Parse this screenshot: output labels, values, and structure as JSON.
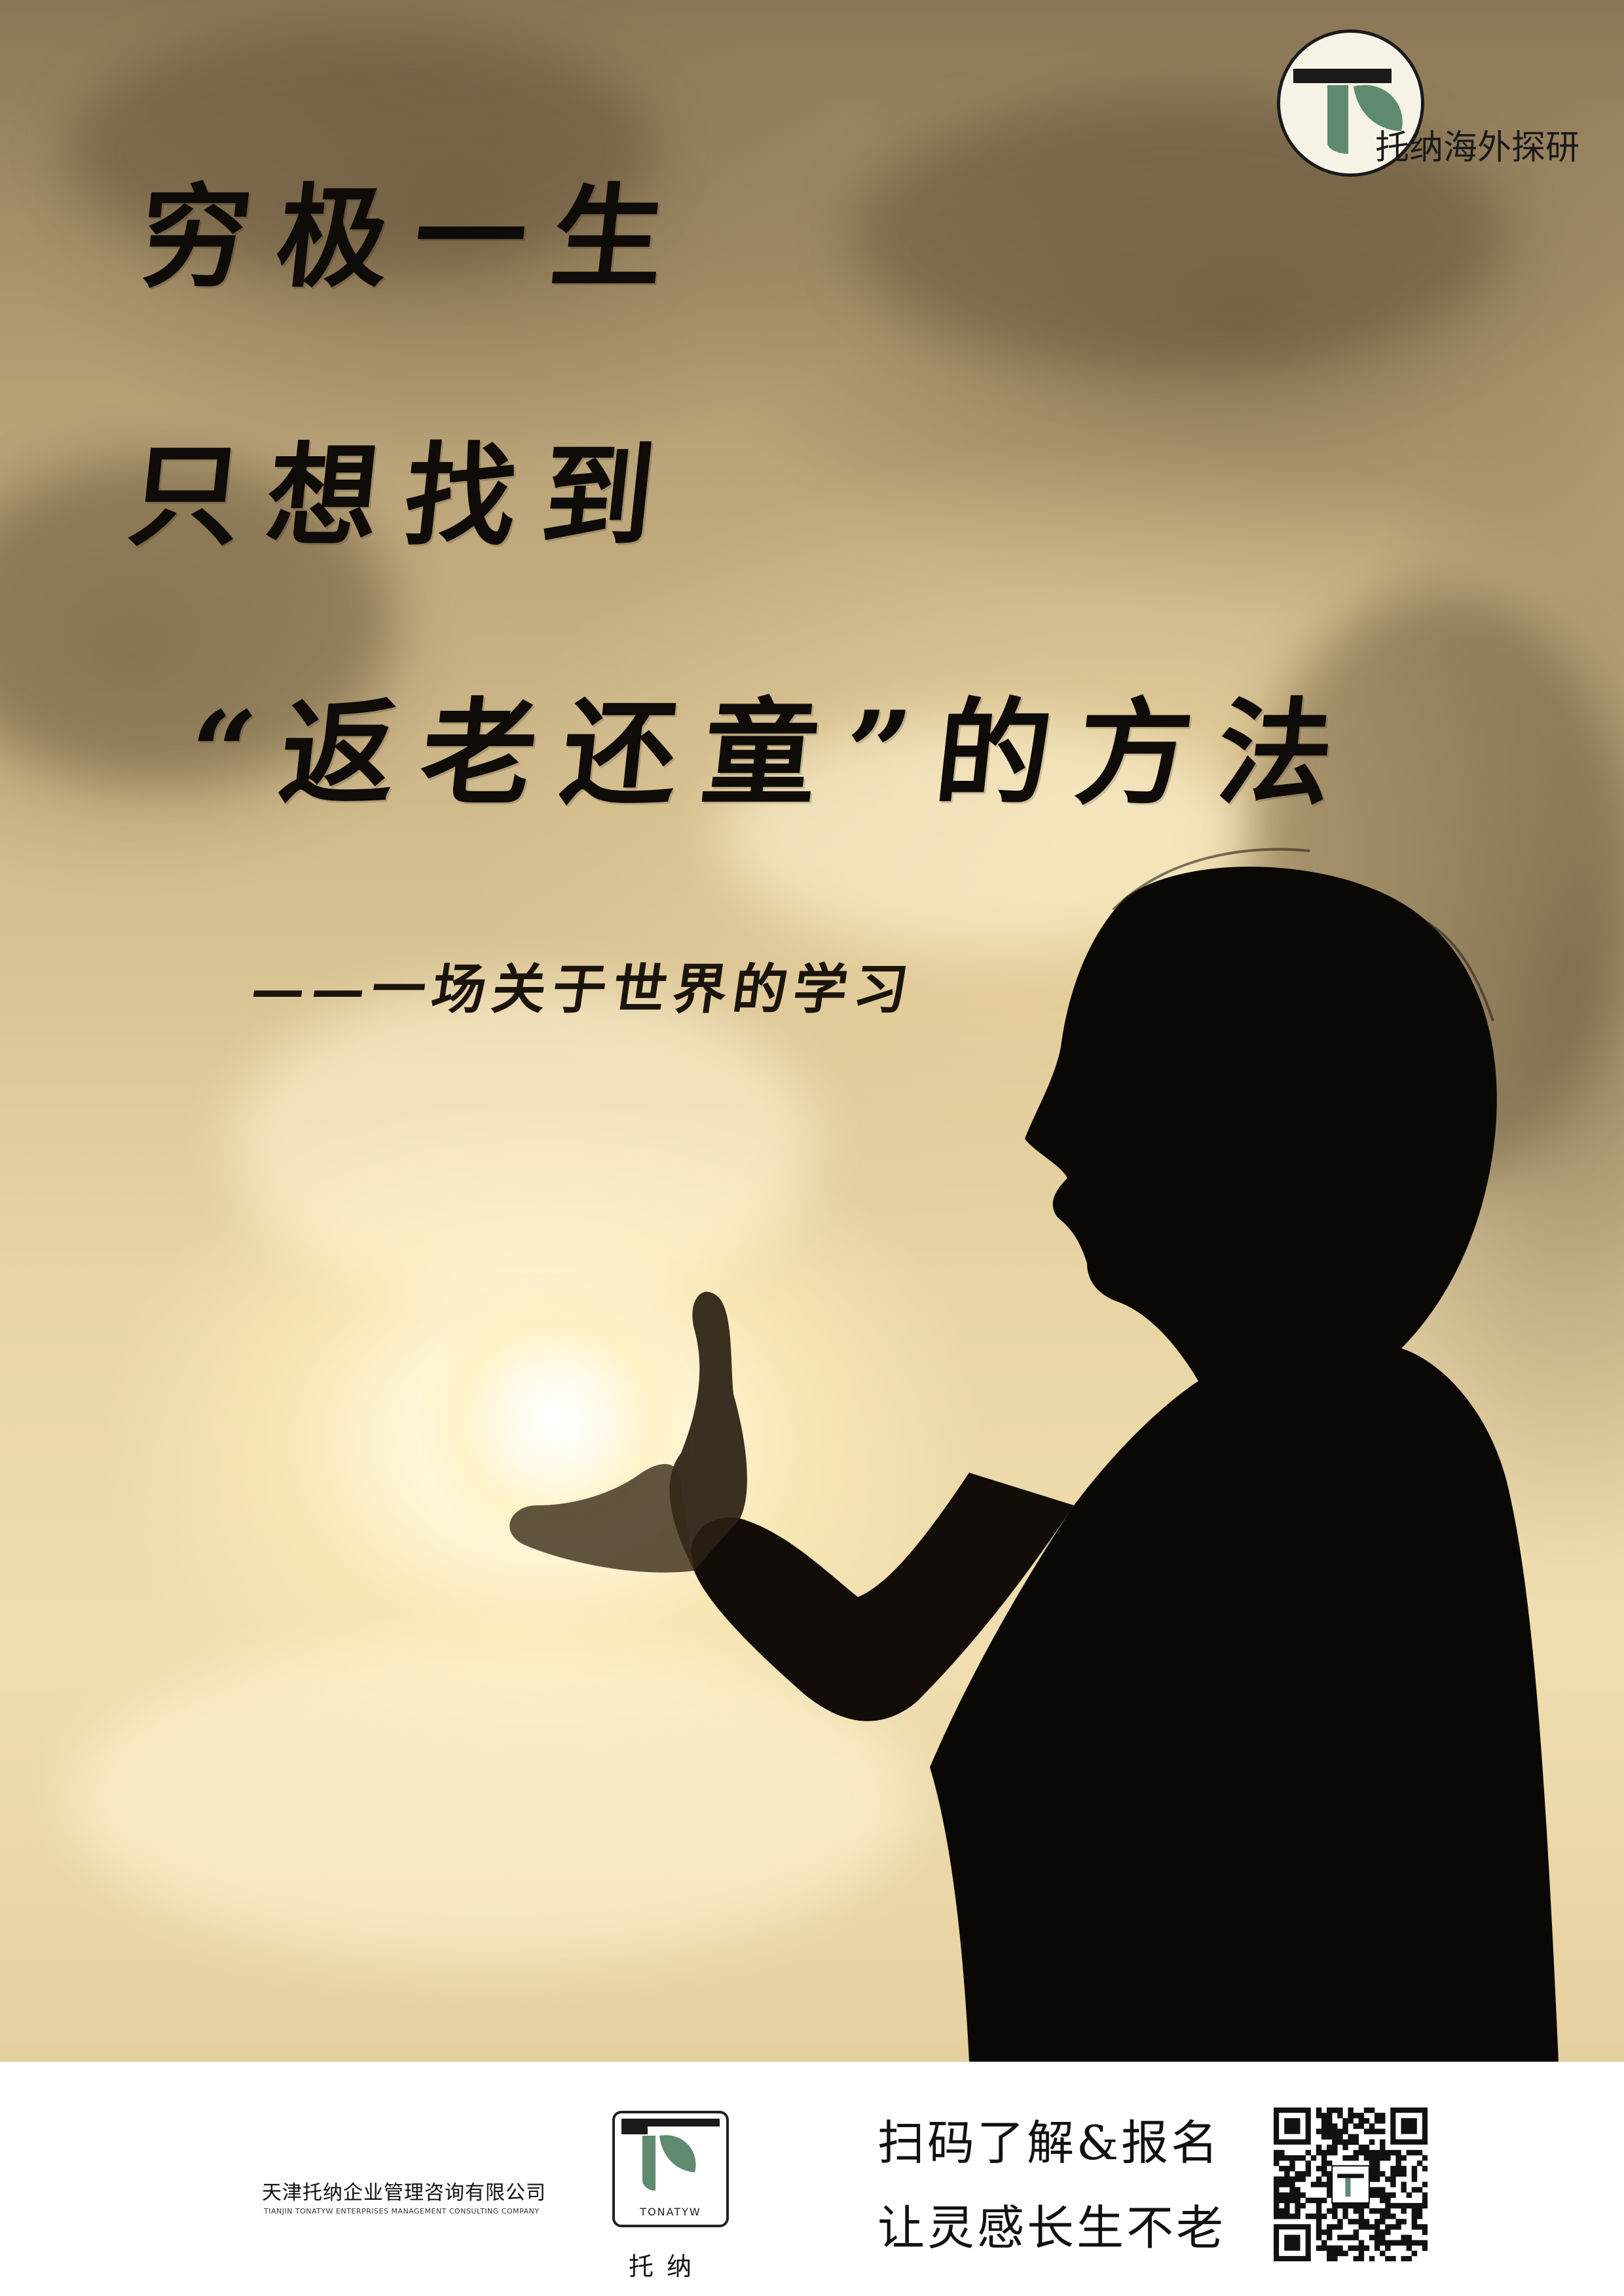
{
  "headline": {
    "line1": "穷极一生",
    "line2": "只想找到",
    "line3": "“返老还童”的方法",
    "subtitle": "——一场关于世界的学习"
  },
  "brand": {
    "name": "托纳海外探研"
  },
  "footer": {
    "company_cn": "天津托纳企业管理咨询有限公司",
    "company_en": "TIANJIN TONATYW ENTERPRISES MANAGEMENT CONSULTING COMPANY",
    "logo_wordmark": "TONATYW",
    "logo_cn": "托纳",
    "cta_line1": "扫码了解&报名",
    "cta_line2": "让灵感长生不老"
  },
  "colors": {
    "logo_green": "#5f8a70",
    "logo_dark": "#1a1a1a",
    "sky_gold": "#d9c08e"
  },
  "icons": {
    "brand_logo": "t-leaf-logo-icon",
    "qr": "qr-code-icon"
  }
}
